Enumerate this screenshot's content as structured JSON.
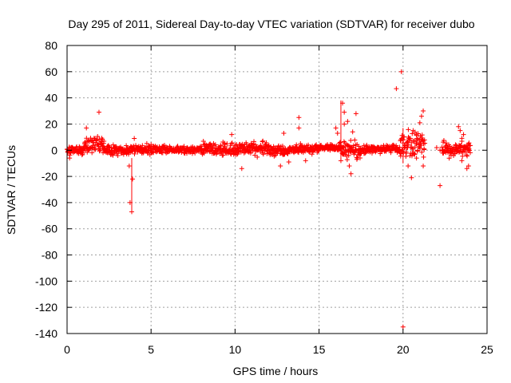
{
  "chart_data": {
    "type": "scatter",
    "title": "Day 295 of 2011, Sidereal Day-to-day VTEC variation (SDTVAR) for receiver dubo",
    "xlabel": "GPS time / hours",
    "ylabel": "SDTVAR / TECUs",
    "xlim": [
      0,
      25
    ],
    "ylim": [
      -140,
      80
    ],
    "xticks": [
      0,
      5,
      10,
      15,
      20,
      25
    ],
    "yticks": [
      -140,
      -120,
      -100,
      -80,
      -60,
      -40,
      -20,
      0,
      20,
      40,
      60,
      80
    ],
    "grid": true,
    "marker": "+",
    "color": "#ff0000",
    "series": [
      {
        "name": "SDTVAR",
        "bands": [
          {
            "x": [
              0.0,
              1.0
            ],
            "y": [
              -6,
              6
            ]
          },
          {
            "x": [
              1.0,
              2.2
            ],
            "y": [
              -5,
              12
            ]
          },
          {
            "x": [
              2.2,
              4.0
            ],
            "y": [
              -5,
              5
            ]
          },
          {
            "x": [
              4.0,
              6.0
            ],
            "y": [
              -4,
              6
            ]
          },
          {
            "x": [
              6.0,
              8.0
            ],
            "y": [
              -3,
              4
            ]
          },
          {
            "x": [
              8.0,
              10.0
            ],
            "y": [
              -6,
              8
            ]
          },
          {
            "x": [
              10.0,
              12.0
            ],
            "y": [
              -6,
              9
            ]
          },
          {
            "x": [
              12.0,
              13.5
            ],
            "y": [
              -6,
              6
            ]
          },
          {
            "x": [
              13.5,
              15.0
            ],
            "y": [
              -4,
              6
            ]
          },
          {
            "x": [
              15.0,
              16.2
            ],
            "y": [
              -1,
              5
            ]
          },
          {
            "x": [
              16.2,
              17.5
            ],
            "y": [
              -10,
              10
            ]
          },
          {
            "x": [
              17.5,
              19.8
            ],
            "y": [
              -3,
              5
            ]
          },
          {
            "x": [
              19.8,
              21.3
            ],
            "y": [
              -10,
              18
            ]
          },
          {
            "x": [
              22.3,
              24.0
            ],
            "y": [
              -8,
              10
            ]
          }
        ],
        "points": [
          {
            "x": 1.9,
            "y": 29
          },
          {
            "x": 3.75,
            "y": -40
          },
          {
            "x": 3.85,
            "y": -47
          },
          {
            "x": 3.7,
            "y": -12
          },
          {
            "x": 3.9,
            "y": -22
          },
          {
            "x": 4.0,
            "y": 9
          },
          {
            "x": 0.15,
            "y": -6
          },
          {
            "x": 1.15,
            "y": 17
          },
          {
            "x": 9.8,
            "y": 12
          },
          {
            "x": 10.4,
            "y": -14
          },
          {
            "x": 12.7,
            "y": -12
          },
          {
            "x": 12.9,
            "y": 13
          },
          {
            "x": 13.2,
            "y": -9
          },
          {
            "x": 13.8,
            "y": 25
          },
          {
            "x": 13.8,
            "y": 17
          },
          {
            "x": 14.2,
            "y": -8
          },
          {
            "x": 15.5,
            "y": 4
          },
          {
            "x": 16.0,
            "y": 17
          },
          {
            "x": 16.1,
            "y": 13
          },
          {
            "x": 16.4,
            "y": 36
          },
          {
            "x": 16.5,
            "y": 29
          },
          {
            "x": 16.5,
            "y": 20
          },
          {
            "x": 16.7,
            "y": 22
          },
          {
            "x": 16.8,
            "y": -12
          },
          {
            "x": 16.9,
            "y": -18
          },
          {
            "x": 16.3,
            "y": -8
          },
          {
            "x": 17.2,
            "y": 28
          },
          {
            "x": 17.0,
            "y": 14
          },
          {
            "x": 19.6,
            "y": 47
          },
          {
            "x": 19.9,
            "y": 60
          },
          {
            "x": 20.0,
            "y": -135
          },
          {
            "x": 20.3,
            "y": -12
          },
          {
            "x": 20.5,
            "y": -21
          },
          {
            "x": 20.6,
            "y": 15
          },
          {
            "x": 20.8,
            "y": -6
          },
          {
            "x": 21.1,
            "y": 26
          },
          {
            "x": 21.2,
            "y": 30
          },
          {
            "x": 21.0,
            "y": 21
          },
          {
            "x": 21.2,
            "y": -12
          },
          {
            "x": 22.0,
            "y": 2
          },
          {
            "x": 22.2,
            "y": 0
          },
          {
            "x": 22.2,
            "y": -27
          },
          {
            "x": 23.3,
            "y": 18
          },
          {
            "x": 23.4,
            "y": 15
          },
          {
            "x": 23.5,
            "y": -8
          },
          {
            "x": 23.8,
            "y": -14
          },
          {
            "x": 23.9,
            "y": -12
          },
          {
            "x": 23.6,
            "y": 12
          }
        ],
        "errorbars": [
          {
            "x": 3.85,
            "y1": -47,
            "y2": -6
          },
          {
            "x": 16.3,
            "y1": 38,
            "y2": -8
          },
          {
            "x": 20.0,
            "y1": 17,
            "y2": -10
          }
        ]
      }
    ]
  }
}
